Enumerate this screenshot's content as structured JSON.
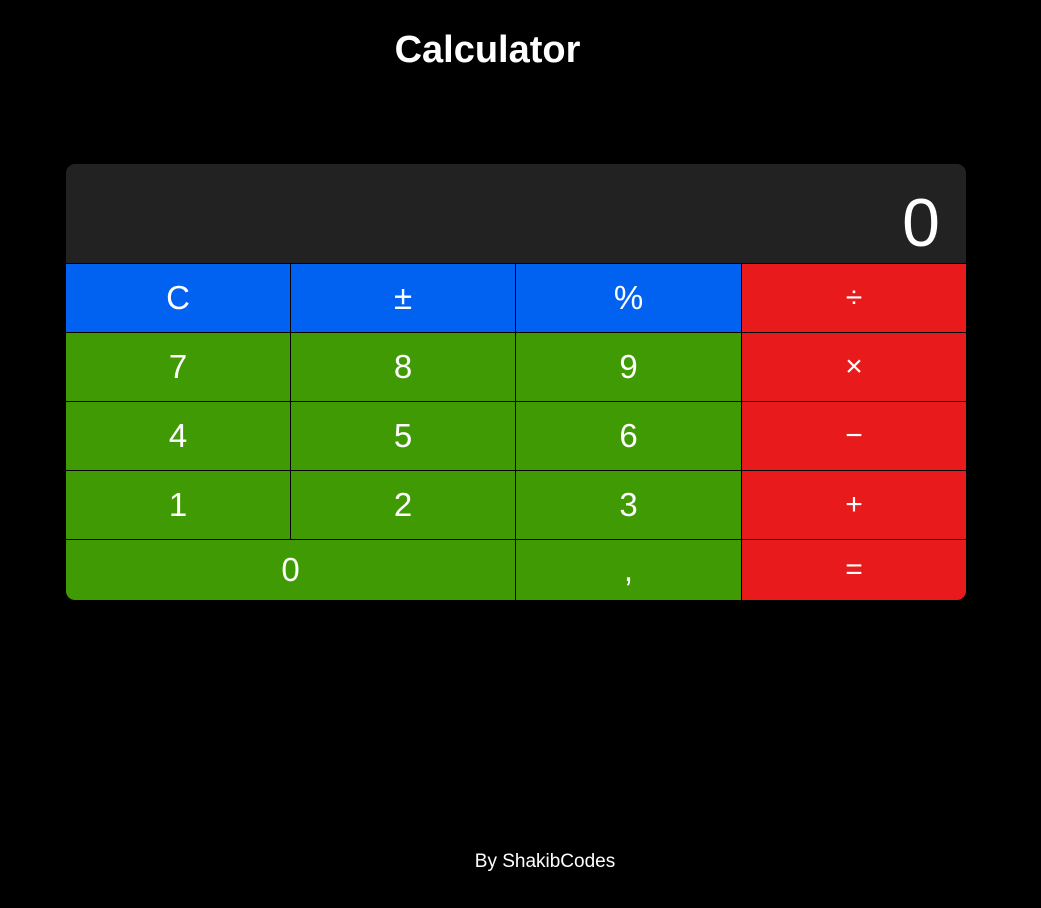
{
  "header": {
    "title": "Calculator"
  },
  "display": {
    "value": "0"
  },
  "keys": {
    "clear": "C",
    "sign": "±",
    "percent": "%",
    "divide": "÷",
    "seven": "7",
    "eight": "8",
    "nine": "9",
    "multiply": "×",
    "four": "4",
    "five": "5",
    "six": "6",
    "subtract": "−",
    "one": "1",
    "two": "2",
    "three": "3",
    "add": "+",
    "zero": "0",
    "decimal": ",",
    "equals": "="
  },
  "footer": {
    "credit": "By ShakibCodes"
  },
  "colors": {
    "background": "#000000",
    "display": "#232223",
    "function_keys": "#0161f1",
    "number_keys": "#3f9a04",
    "operator_keys": "#e81a1b",
    "text": "#ffffff"
  }
}
